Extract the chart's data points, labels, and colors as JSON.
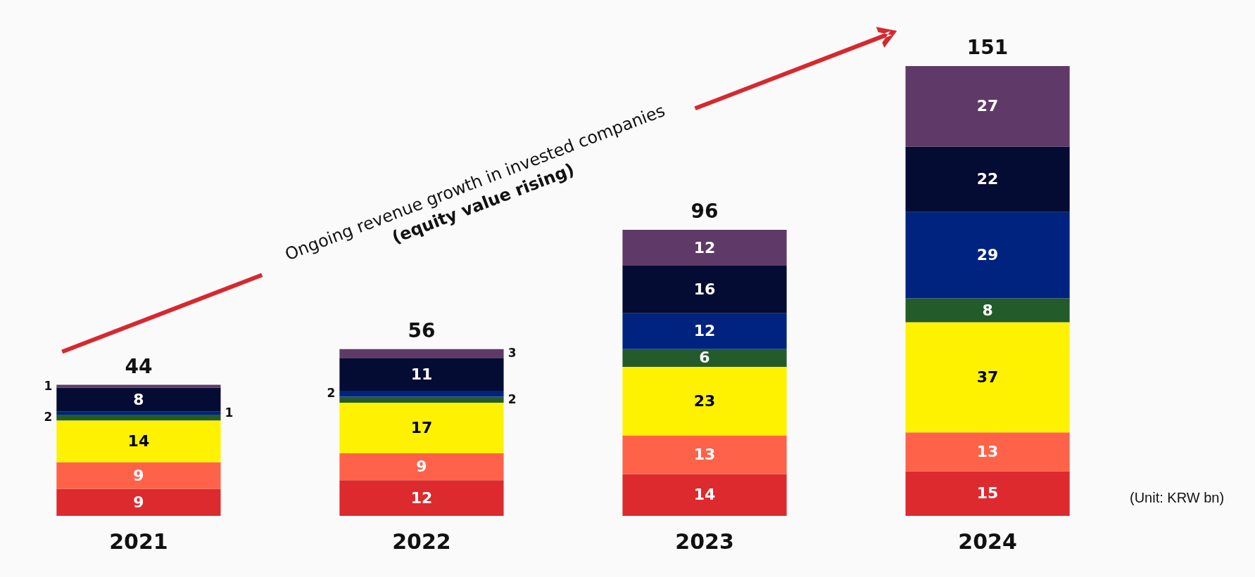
{
  "chart_data": {
    "type": "bar",
    "stacked": true,
    "categories": [
      "2021",
      "2022",
      "2023",
      "2024"
    ],
    "series": [
      {
        "color": "#dc2a2e",
        "values": [
          9,
          12,
          14,
          15
        ]
      },
      {
        "color": "#fe634a",
        "values": [
          9,
          9,
          13,
          13
        ]
      },
      {
        "color": "#fff200",
        "values": [
          14,
          17,
          23,
          37
        ]
      },
      {
        "color": "#245b2a",
        "values": [
          2,
          2,
          6,
          8
        ]
      },
      {
        "color": "#002380",
        "values": [
          1,
          2,
          12,
          29
        ]
      },
      {
        "color": "#050c33",
        "values": [
          8,
          11,
          16,
          22
        ]
      },
      {
        "color": "#5f3967",
        "values": [
          1,
          3,
          12,
          27
        ]
      }
    ],
    "data_labels": true,
    "totals": [
      "44",
      "56",
      "96",
      "151"
    ],
    "annotations": [
      "Ongoing revenue growth in invested companies",
      "(equity value rising)",
      "(Unit: KRW bn)"
    ]
  }
}
